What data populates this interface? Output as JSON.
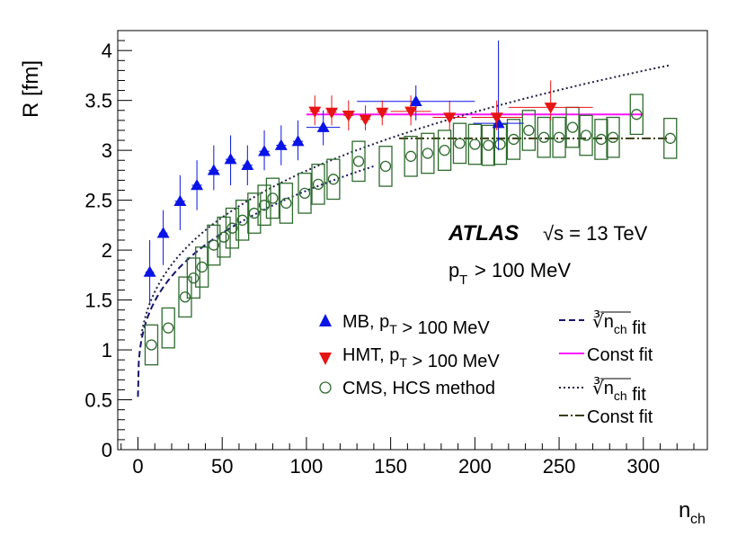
{
  "chart_data": {
    "type": "scatter",
    "title": "",
    "xlabel": "n_ch",
    "ylabel": "R [fm]",
    "xlim": [
      -12,
      338
    ],
    "ylim": [
      0,
      4.2
    ],
    "xticks": [
      "0",
      "50",
      "100",
      "150",
      "200",
      "250",
      "300"
    ],
    "yticks": [
      "0",
      "0.5",
      "1",
      "1.5",
      "2",
      "2.5",
      "3",
      "3.5",
      "4"
    ],
    "annotations": {
      "experiment": "ATLAS",
      "energy": "√s = 13 TeV",
      "cut": "p_T > 100 MeV"
    },
    "legend": {
      "placement": "bottom-right",
      "entries": [
        {
          "key": "mb",
          "label": "MB, p_T > 100 MeV"
        },
        {
          "key": "hmt",
          "label": "HMT, p_T > 100 MeV"
        },
        {
          "key": "cms",
          "label": "CMS, HCS method"
        },
        {
          "key": "mbfit",
          "label": "∛n_ch fit"
        },
        {
          "key": "hmtfit",
          "label": "Const fit"
        },
        {
          "key": "cmsfit",
          "label": "∛n_ch fit"
        },
        {
          "key": "cmsconst",
          "label": "Const fit"
        }
      ]
    },
    "colors": {
      "mb": "#0a14e6",
      "hmt": "#e61414",
      "cms": "#2e6b2e",
      "mbfit": "#14146e",
      "hmtfit": "#ff14ff",
      "cmsfit": "#1e1e46",
      "cmsconst": "#3c3c14"
    },
    "series": [
      {
        "name": "MB, p_T > 100 MeV",
        "key": "mb",
        "points": [
          {
            "x": 7,
            "y": 1.78,
            "xerr": 2.5,
            "ylo": 1.45,
            "yhi": 2.1
          },
          {
            "x": 15,
            "y": 2.17,
            "xerr": 2.5,
            "ylo": 1.85,
            "yhi": 2.4
          },
          {
            "x": 25,
            "y": 2.49,
            "xerr": 3,
            "ylo": 2.2,
            "yhi": 2.75
          },
          {
            "x": 35,
            "y": 2.65,
            "xerr": 3,
            "ylo": 2.4,
            "yhi": 2.9
          },
          {
            "x": 45,
            "y": 2.8,
            "xerr": 3,
            "ylo": 2.6,
            "yhi": 3.05
          },
          {
            "x": 55,
            "y": 2.91,
            "xerr": 3,
            "ylo": 2.65,
            "yhi": 3.15
          },
          {
            "x": 65,
            "y": 2.85,
            "xerr": 3,
            "ylo": 2.65,
            "yhi": 3.05
          },
          {
            "x": 75,
            "y": 2.99,
            "xerr": 3,
            "ylo": 2.8,
            "yhi": 3.2
          },
          {
            "x": 85,
            "y": 3.05,
            "xerr": 3,
            "ylo": 2.85,
            "yhi": 3.25
          },
          {
            "x": 95,
            "y": 3.09,
            "xerr": 3,
            "ylo": 2.9,
            "yhi": 3.3
          },
          {
            "x": 110,
            "y": 3.23,
            "xerr": 10,
            "ylo": 3.05,
            "yhi": 3.4
          },
          {
            "x": 165,
            "y": 3.49,
            "xerr": 35,
            "ylo": 3.3,
            "yhi": 3.65
          },
          {
            "x": 214,
            "y": 3.27,
            "xerr": 15,
            "ylo": 3.0,
            "yhi": 4.1
          }
        ]
      },
      {
        "name": "HMT, p_T > 100 MeV",
        "key": "hmt",
        "points": [
          {
            "x": 105,
            "y": 3.39,
            "xerr": 3,
            "ylo": 3.25,
            "yhi": 3.55
          },
          {
            "x": 115,
            "y": 3.38,
            "xerr": 3,
            "ylo": 3.25,
            "yhi": 3.55
          },
          {
            "x": 125,
            "y": 3.35,
            "xerr": 3,
            "ylo": 3.2,
            "yhi": 3.5
          },
          {
            "x": 135,
            "y": 3.31,
            "xerr": 3,
            "ylo": 3.2,
            "yhi": 3.45
          },
          {
            "x": 145,
            "y": 3.38,
            "xerr": 3,
            "ylo": 3.25,
            "yhi": 3.5
          },
          {
            "x": 162,
            "y": 3.39,
            "xerr": 12,
            "ylo": 3.25,
            "yhi": 3.55
          },
          {
            "x": 185,
            "y": 3.33,
            "xerr": 10,
            "ylo": 3.2,
            "yhi": 3.5
          },
          {
            "x": 213,
            "y": 3.33,
            "xerr": 15,
            "ylo": 3.2,
            "yhi": 3.5
          },
          {
            "x": 245,
            "y": 3.43,
            "xerr": 25,
            "ylo": 3.3,
            "yhi": 3.7
          }
        ]
      },
      {
        "name": "CMS, HCS method",
        "key": "cms",
        "points": [
          {
            "x": 8,
            "y": 1.05,
            "ylo": 0.85,
            "yhi": 1.25
          },
          {
            "x": 18,
            "y": 1.22,
            "ylo": 1.02,
            "yhi": 1.42
          },
          {
            "x": 28,
            "y": 1.53,
            "ylo": 1.33,
            "yhi": 1.73
          },
          {
            "x": 33,
            "y": 1.72,
            "ylo": 1.52,
            "yhi": 1.92
          },
          {
            "x": 38,
            "y": 1.83,
            "ylo": 1.63,
            "yhi": 2.03
          },
          {
            "x": 45,
            "y": 2.05,
            "ylo": 1.85,
            "yhi": 2.25
          },
          {
            "x": 51,
            "y": 2.13,
            "ylo": 1.93,
            "yhi": 2.33
          },
          {
            "x": 56,
            "y": 2.22,
            "ylo": 2.02,
            "yhi": 2.42
          },
          {
            "x": 62,
            "y": 2.3,
            "ylo": 2.1,
            "yhi": 2.5
          },
          {
            "x": 69,
            "y": 2.37,
            "ylo": 2.17,
            "yhi": 2.57
          },
          {
            "x": 75,
            "y": 2.45,
            "ylo": 2.25,
            "yhi": 2.65
          },
          {
            "x": 80,
            "y": 2.52,
            "ylo": 2.32,
            "yhi": 2.72
          },
          {
            "x": 88,
            "y": 2.47,
            "ylo": 2.27,
            "yhi": 2.67
          },
          {
            "x": 99,
            "y": 2.57,
            "ylo": 2.37,
            "yhi": 2.77
          },
          {
            "x": 107,
            "y": 2.66,
            "ylo": 2.46,
            "yhi": 2.86
          },
          {
            "x": 116,
            "y": 2.71,
            "ylo": 2.51,
            "yhi": 2.91
          },
          {
            "x": 131,
            "y": 2.89,
            "ylo": 2.69,
            "yhi": 3.09
          },
          {
            "x": 147,
            "y": 2.84,
            "ylo": 2.64,
            "yhi": 3.04
          },
          {
            "x": 162,
            "y": 2.94,
            "ylo": 2.74,
            "yhi": 3.14
          },
          {
            "x": 172,
            "y": 2.97,
            "ylo": 2.77,
            "yhi": 3.17
          },
          {
            "x": 182,
            "y": 3.0,
            "ylo": 2.8,
            "yhi": 3.2
          },
          {
            "x": 191,
            "y": 3.07,
            "ylo": 2.87,
            "yhi": 3.27
          },
          {
            "x": 200,
            "y": 3.06,
            "ylo": 2.86,
            "yhi": 3.26
          },
          {
            "x": 208,
            "y": 3.05,
            "ylo": 2.85,
            "yhi": 3.25
          },
          {
            "x": 215,
            "y": 3.06,
            "ylo": 2.86,
            "yhi": 3.26
          },
          {
            "x": 223,
            "y": 3.11,
            "ylo": 2.91,
            "yhi": 3.31
          },
          {
            "x": 232,
            "y": 3.2,
            "ylo": 3.0,
            "yhi": 3.4
          },
          {
            "x": 241,
            "y": 3.13,
            "ylo": 2.93,
            "yhi": 3.33
          },
          {
            "x": 250,
            "y": 3.13,
            "ylo": 2.93,
            "yhi": 3.33
          },
          {
            "x": 258,
            "y": 3.23,
            "ylo": 3.03,
            "yhi": 3.43
          },
          {
            "x": 266,
            "y": 3.15,
            "ylo": 2.95,
            "yhi": 3.35
          },
          {
            "x": 275,
            "y": 3.11,
            "ylo": 2.91,
            "yhi": 3.31
          },
          {
            "x": 282,
            "y": 3.13,
            "ylo": 2.93,
            "yhi": 3.33
          },
          {
            "x": 296,
            "y": 3.36,
            "ylo": 3.16,
            "yhi": 3.56
          },
          {
            "x": 316,
            "y": 3.12,
            "ylo": 2.92,
            "yhi": 3.32
          }
        ]
      }
    ],
    "fits": [
      {
        "key": "mbfit",
        "kind": "cuberoot",
        "a": 0.53,
        "b": 0.445,
        "x0": 0,
        "x1": 58,
        "extend_to": 140
      },
      {
        "key": "hmtfit",
        "kind": "const",
        "value": 3.36,
        "x0": 100,
        "x1": 300
      },
      {
        "key": "cmsfit",
        "kind": "cuberoot",
        "a": 0.53,
        "b": 0.488,
        "x0": 2,
        "x1": 315
      },
      {
        "key": "cmsconst",
        "kind": "const",
        "value": 3.12,
        "x0": 155,
        "x1": 315
      }
    ]
  }
}
